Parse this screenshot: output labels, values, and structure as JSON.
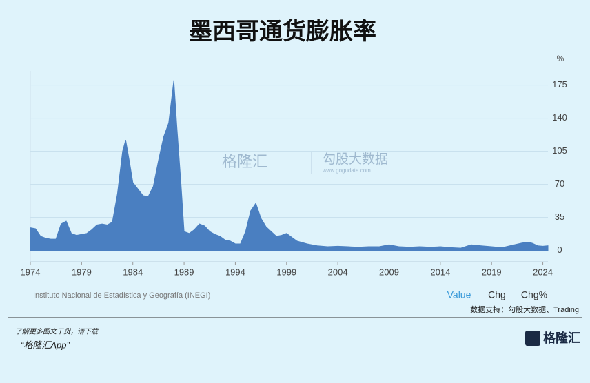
{
  "chart_data": {
    "type": "area",
    "title": "墨西哥通货膨胀率",
    "y_unit": "%",
    "x": [
      1974.0,
      1974.5,
      1975.0,
      1975.5,
      1976.0,
      1976.5,
      1977.0,
      1977.5,
      1978.0,
      1978.5,
      1979.0,
      1979.5,
      1980.0,
      1980.5,
      1981.0,
      1981.5,
      1982.0,
      1982.5,
      1983.0,
      1983.3,
      1983.7,
      1984.0,
      1984.5,
      1985.0,
      1985.5,
      1986.0,
      1986.5,
      1987.0,
      1987.5,
      1988.0,
      1988.3,
      1988.7,
      1989.0,
      1989.5,
      1990.0,
      1990.5,
      1991.0,
      1991.5,
      1992.0,
      1992.5,
      1993.0,
      1993.5,
      1994.0,
      1994.5,
      1995.0,
      1995.5,
      1996.0,
      1996.5,
      1997.0,
      1997.5,
      1998.0,
      1998.5,
      1999.0,
      1999.5,
      2000.0,
      2001.0,
      2002.0,
      2003.0,
      2004.0,
      2005.0,
      2006.0,
      2007.0,
      2008.0,
      2009.0,
      2010.0,
      2011.0,
      2012.0,
      2013.0,
      2014.0,
      2015.0,
      2016.0,
      2017.0,
      2018.0,
      2019.0,
      2020.0,
      2021.0,
      2022.0,
      2022.7,
      2023.0,
      2023.5,
      2024.0,
      2024.5
    ],
    "values": [
      24,
      23,
      15,
      13,
      12,
      12,
      28,
      31,
      18,
      16,
      17,
      18,
      22,
      27,
      28,
      27,
      30,
      60,
      105,
      117,
      92,
      72,
      65,
      58,
      57,
      68,
      95,
      120,
      135,
      180,
      130,
      70,
      20,
      18,
      22,
      28,
      26,
      20,
      17,
      15,
      11,
      10,
      7,
      7,
      20,
      42,
      50,
      34,
      25,
      20,
      15,
      16,
      18,
      14,
      10,
      7,
      5,
      4,
      4.5,
      4,
      3.5,
      4,
      4,
      6,
      4,
      3.5,
      4,
      3.5,
      4,
      3,
      2.5,
      6,
      5,
      4,
      3,
      5.5,
      8,
      8.5,
      7.5,
      5,
      4.5,
      5
    ],
    "color": "#4a7fc1",
    "xlim": [
      1974,
      2024.5
    ],
    "xticks": [
      1974,
      1979,
      1984,
      1989,
      1994,
      1999,
      2004,
      2009,
      2014,
      2019,
      2024
    ],
    "ylim": [
      -12,
      190
    ],
    "yticks": [
      0,
      35,
      70,
      105,
      140,
      175
    ],
    "grid": true,
    "source": "Instituto Nacional de Estadística y Geografía (INEGI)",
    "buttons": [
      "Value",
      "Chg",
      "Chg%"
    ],
    "credit": "数据支持：勾股大数据、Trading"
  },
  "watermark": {
    "brand": "格隆汇",
    "data_brand": "勾股大数据",
    "url": "www.gogudata.com"
  },
  "footer": {
    "prompt": "了解更多图文干货，请下载",
    "app": "“格隆汇App”",
    "logo": "格隆汇"
  }
}
